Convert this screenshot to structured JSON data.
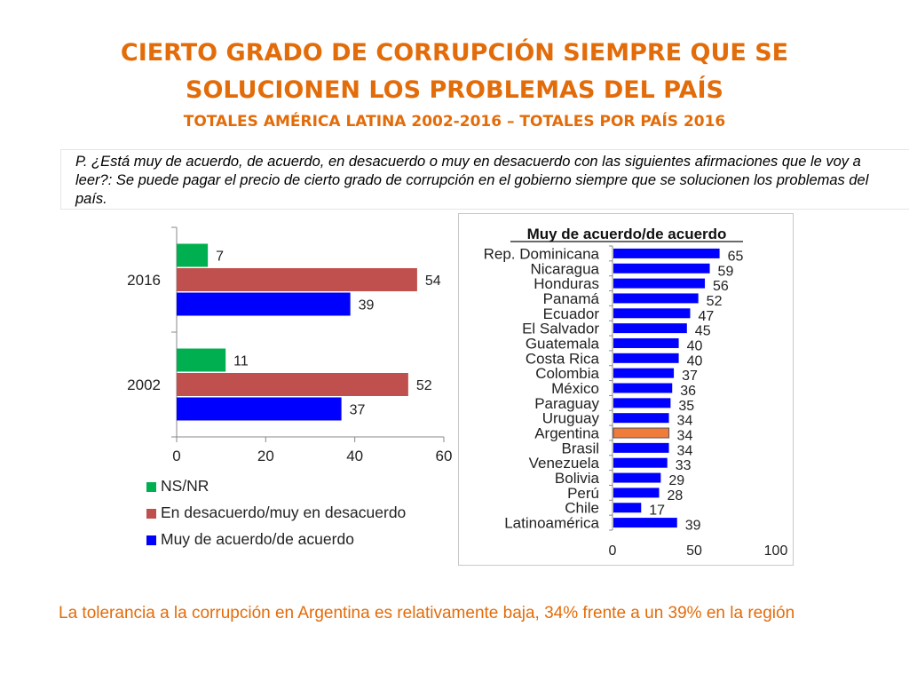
{
  "header": {
    "title_line1": "CIERTO GRADO DE CORRUPCIÓN SIEMPRE QUE SE",
    "title_line2": "SOLUCIONEN LOS PROBLEMAS DEL PAÍS",
    "subtitle": "TOTALES AMÉRICA LATINA 2002-2016 – TOTALES POR PAÍS 2016"
  },
  "question": "P. ¿Está muy de acuerdo, de acuerdo, en desacuerdo o muy en desacuerdo con las siguientes afirmaciones que le voy a leer?:  Se puede pagar el precio de cierto grado de corrupción en el gobierno siempre que se solucionen los problemas del país.",
  "conclusion": "La tolerancia a la corrupción en Argentina es relativamente baja, 34% frente a un 39% en la región",
  "colors": {
    "title": "#e36c0a",
    "ns_nr": "#00b050",
    "desacuerdo": "#c0504d",
    "acuerdo": "#0000ff",
    "highlight": "#f07c3c"
  },
  "chart_data": [
    {
      "type": "bar",
      "orientation": "horizontal",
      "categories": [
        "2016",
        "2002"
      ],
      "series": [
        {
          "name": "NS/NR",
          "values": [
            7,
            11
          ]
        },
        {
          "name": "En desacuerdo/muy en desacuerdo",
          "values": [
            54,
            52
          ]
        },
        {
          "name": "Muy de acuerdo/de acuerdo",
          "values": [
            39,
            37
          ]
        }
      ],
      "xlim": [
        0,
        60
      ],
      "xticks": [
        0,
        20,
        40,
        60
      ],
      "legend_position": "bottom",
      "data_labels": true
    },
    {
      "type": "bar",
      "orientation": "horizontal",
      "title": "Muy de acuerdo/de acuerdo",
      "categories": [
        "Rep. Dominicana",
        "Nicaragua",
        "Honduras",
        "Panamá",
        "Ecuador",
        "El Salvador",
        "Guatemala",
        "Costa Rica",
        "Colombia",
        "México",
        "Paraguay",
        "Uruguay",
        "Argentina",
        "Brasil",
        "Venezuela",
        "Bolivia",
        "Perú",
        "Chile",
        "Latinoamérica"
      ],
      "values": [
        65,
        59,
        56,
        52,
        47,
        45,
        40,
        40,
        37,
        36,
        35,
        34,
        34,
        34,
        33,
        29,
        28,
        17,
        39
      ],
      "highlight": "Argentina",
      "xlim": [
        0,
        100
      ],
      "xticks": [
        0,
        50,
        100
      ],
      "data_labels": true
    }
  ]
}
